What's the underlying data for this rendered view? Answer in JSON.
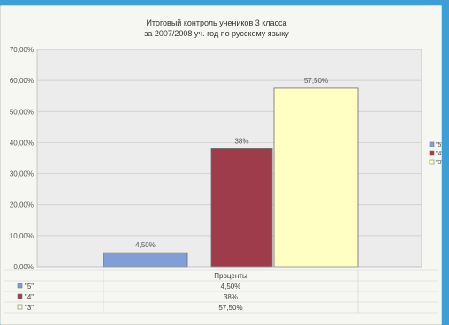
{
  "chart_data": {
    "type": "bar",
    "title": "Итоговый контроль учеников 3 класса",
    "subtitle": "за  2007/2008  уч. год по русскому языку",
    "category_label": "Проценты",
    "ylim": [
      0,
      70
    ],
    "y_ticks": [
      "0,00%",
      "10,00%",
      "20,00%",
      "30,00%",
      "40,00%",
      "50,00%",
      "60,00%",
      "70,00%"
    ],
    "legend_position": "right",
    "series": [
      {
        "name": "\"5\"",
        "value": 4.5,
        "label": "4,50%",
        "color": "#7f9fd6"
      },
      {
        "name": "\"4\"",
        "value": 38,
        "label": "38%",
        "color": "#9e3c4c"
      },
      {
        "name": "\"3\"",
        "value": 57.5,
        "label": "57,50%",
        "color": "#ffffc4"
      }
    ]
  }
}
